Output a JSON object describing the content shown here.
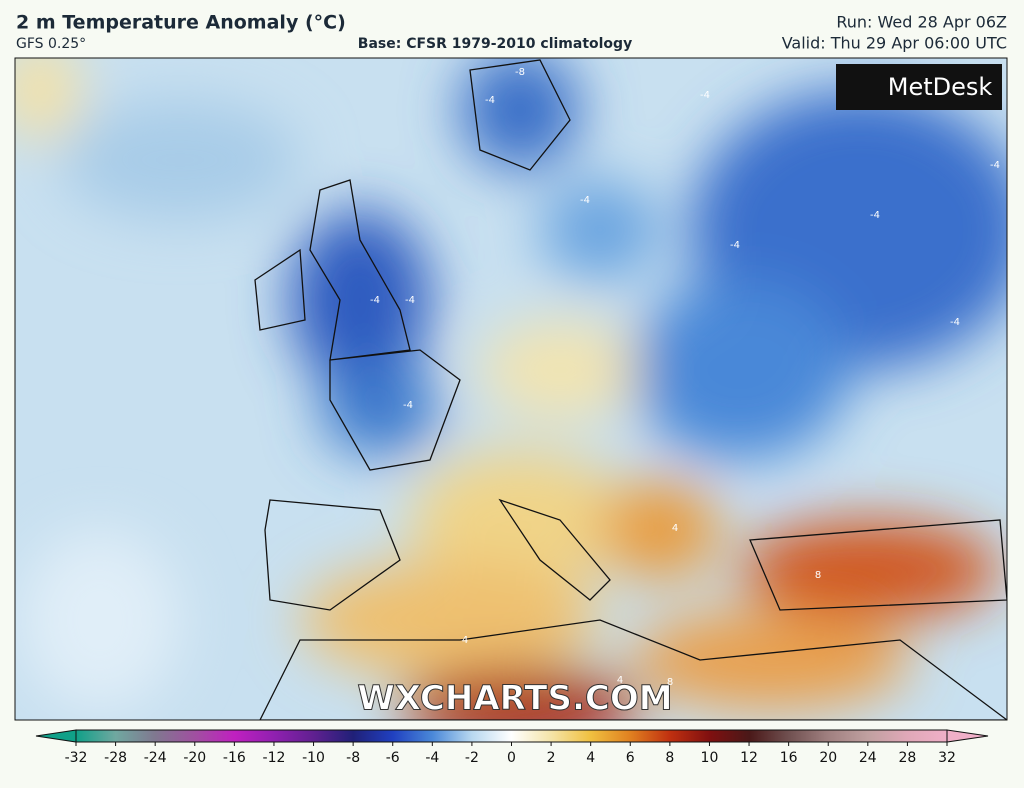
{
  "header": {
    "title": "2 m Temperature Anomaly (°C)",
    "model": "GFS 0.25°",
    "base": "Base: CFSR 1979-2010 climatology",
    "run": "Run: Wed 28 Apr 06Z",
    "valid": "Valid: Thu 29 Apr 06:00 UTC"
  },
  "map": {
    "logo": "MetDesk",
    "watermark": "WXCHARTS.COM",
    "contour_labels": [
      "-8",
      "-4",
      "-4",
      "-4",
      "-4",
      "-4",
      "-4",
      "-4",
      "-4",
      "-4",
      "-4",
      "4",
      "4",
      "4",
      "8",
      "8"
    ]
  },
  "colorbar": {
    "ticks": [
      -32,
      -28,
      -24,
      -20,
      -16,
      -12,
      -10,
      -8,
      -6,
      -4,
      -2,
      0,
      2,
      4,
      6,
      8,
      10,
      12,
      16,
      20,
      24,
      28,
      32
    ],
    "colors": [
      "#10a088",
      "#70a8a0",
      "#807890",
      "#a050a0",
      "#c020c0",
      "#9020b0",
      "#602090",
      "#202078",
      "#2040c0",
      "#4a88d8",
      "#b8d8f0",
      "#ffffff",
      "#f4e4a8",
      "#f0c040",
      "#e08020",
      "#c03010",
      "#801010",
      "#4a1818",
      "#705050",
      "#a08080",
      "#c0a0a0",
      "#e0a8b8",
      "#f0b0c8"
    ]
  }
}
